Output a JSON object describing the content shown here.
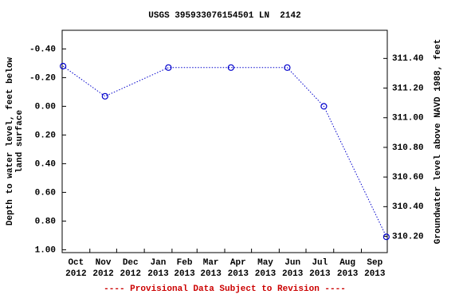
{
  "chart_data": {
    "type": "line",
    "title": "USGS 395933076154501 LN  2142",
    "y_label": "Depth to water level, feet below land surface",
    "y2_label": "Groundwater level above NAVD 1988, feet",
    "footnote": "---- Provisional Data Subject to Revision ----",
    "x": [
      "2012-10-02",
      "2012-11-18",
      "2013-01-28",
      "2013-04-08",
      "2013-06-10",
      "2013-07-21",
      "2013-09-29"
    ],
    "xlim": [
      "2012-10-01",
      "2013-09-30"
    ],
    "xticks": [
      {
        "value": "2012-10",
        "label": "Oct 2012"
      },
      {
        "value": "2012-11",
        "label": "Nov 2012"
      },
      {
        "value": "2012-12",
        "label": "Dec 2012"
      },
      {
        "value": "2013-01",
        "label": "Jan 2013"
      },
      {
        "value": "2013-02",
        "label": "Feb 2013"
      },
      {
        "value": "2013-03",
        "label": "Mar 2013"
      },
      {
        "value": "2013-04",
        "label": "Apr 2013"
      },
      {
        "value": "2013-05",
        "label": "May 2013"
      },
      {
        "value": "2013-06",
        "label": "Jun 2013"
      },
      {
        "value": "2013-07",
        "label": "Jul 2013"
      },
      {
        "value": "2013-08",
        "label": "Aug 2013"
      },
      {
        "value": "2013-09",
        "label": "Sep 2013"
      }
    ],
    "series": [
      {
        "color": "#0000cc",
        "values": [
          -0.28,
          -0.07,
          -0.27,
          -0.27,
          -0.27,
          0.0,
          0.91
        ]
      }
    ],
    "ylim": [
      -0.53,
      1.02
    ],
    "y_inverted": true,
    "yticks": [
      {
        "value": -0.4,
        "label": "-0.40"
      },
      {
        "value": -0.2,
        "label": "-0.20"
      },
      {
        "value": 0,
        "label": "0.00"
      },
      {
        "value": 0.2,
        "label": "0.20"
      },
      {
        "value": 0.4,
        "label": "0.40"
      },
      {
        "value": 0.6,
        "label": "0.60"
      },
      {
        "value": 0.8,
        "label": "0.80"
      },
      {
        "value": 1,
        "label": "1.00"
      }
    ],
    "y2lim": [
      310.09,
      311.59
    ],
    "y2ticks": [
      {
        "value": 310.2,
        "label": "310.20"
      },
      {
        "value": 310.4,
        "label": "310.40"
      },
      {
        "value": 310.6,
        "label": "310.60"
      },
      {
        "value": 310.8,
        "label": "310.80"
      },
      {
        "value": 311,
        "label": "311.00"
      },
      {
        "value": 311.2,
        "label": "311.20"
      },
      {
        "value": 311.4,
        "label": "311.40"
      }
    ],
    "footnote_color": "#cc0000"
  }
}
